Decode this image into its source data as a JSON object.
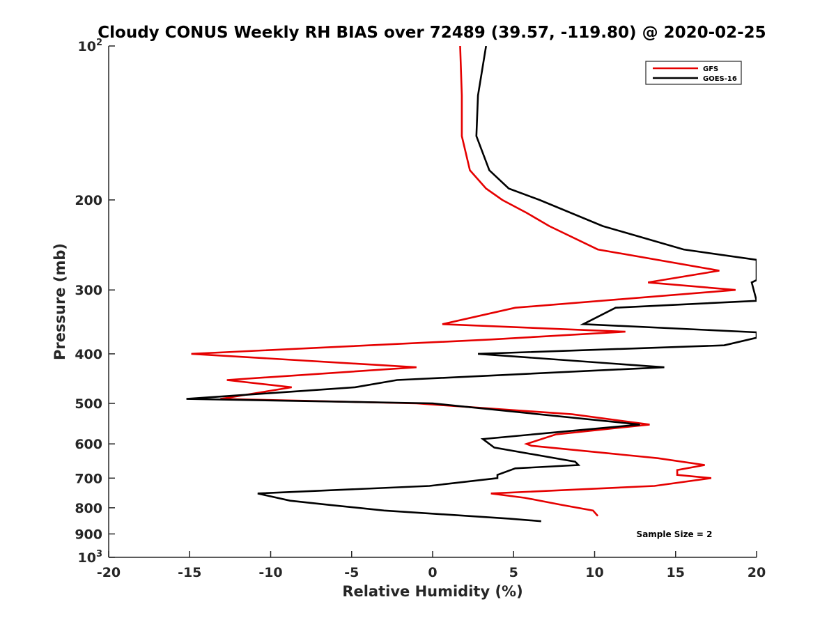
{
  "chart_data": {
    "type": "line",
    "title": "Cloudy CONUS Weekly RH BIAS over 72489 (39.57, -119.80) @ 2020-02-25",
    "xlabel": "Relative Humidity (%)",
    "ylabel": "Pressure (mb)",
    "xlim": [
      -20,
      20
    ],
    "ylim": [
      100,
      1000
    ],
    "y_scale": "log",
    "y_reversed": true,
    "grid": false,
    "legend_position": "top-right",
    "x_ticks": [
      "-20",
      "-15",
      "-10",
      "-5",
      "0",
      "5",
      "10",
      "15",
      "20"
    ],
    "y_ticks": [
      {
        "value": 100,
        "base": "10",
        "exp": "2"
      },
      {
        "value": 200,
        "label": "200"
      },
      {
        "value": 300,
        "label": "300"
      },
      {
        "value": 400,
        "label": "400"
      },
      {
        "value": 500,
        "label": "500"
      },
      {
        "value": 600,
        "label": "600"
      },
      {
        "value": 700,
        "label": "700"
      },
      {
        "value": 800,
        "label": "800"
      },
      {
        "value": 900,
        "label": "900"
      },
      {
        "value": 1000,
        "base": "10",
        "exp": "3"
      }
    ],
    "annotation": "Sample Size = 2",
    "series": [
      {
        "name": "GFS",
        "color": "#e50000",
        "points": [
          [
            1.7,
            100
          ],
          [
            1.8,
            125
          ],
          [
            1.8,
            150
          ],
          [
            2.3,
            175
          ],
          [
            3.3,
            190
          ],
          [
            4.3,
            200
          ],
          [
            5.8,
            212
          ],
          [
            7.2,
            225
          ],
          [
            10.2,
            250
          ],
          [
            17.7,
            275
          ],
          [
            13.3,
            290
          ],
          [
            18.7,
            300
          ],
          [
            5.1,
            325
          ],
          [
            0.6,
            350
          ],
          [
            11.9,
            362
          ],
          [
            3.6,
            375
          ],
          [
            -14.9,
            400
          ],
          [
            -1.0,
            425
          ],
          [
            -12.7,
            450
          ],
          [
            -8.7,
            465
          ],
          [
            -13.1,
            490
          ],
          [
            -1.0,
            500
          ],
          [
            8.6,
            525
          ],
          [
            13.4,
            550
          ],
          [
            7.6,
            575
          ],
          [
            5.8,
            600
          ],
          [
            6.1,
            605
          ],
          [
            13.9,
            640
          ],
          [
            16.8,
            660
          ],
          [
            15.1,
            675
          ],
          [
            15.1,
            690
          ],
          [
            17.2,
            700
          ],
          [
            13.7,
            725
          ],
          [
            3.6,
            750
          ],
          [
            5.7,
            765
          ],
          [
            8.0,
            790
          ],
          [
            9.9,
            810
          ],
          [
            10.2,
            830
          ]
        ]
      },
      {
        "name": "GOES-16",
        "color": "#000000",
        "points": [
          [
            3.3,
            100
          ],
          [
            2.8,
            125
          ],
          [
            2.7,
            150
          ],
          [
            3.5,
            175
          ],
          [
            4.7,
            190
          ],
          [
            6.6,
            200
          ],
          [
            10.5,
            225
          ],
          [
            15.5,
            250
          ],
          [
            20.0,
            262
          ],
          [
            20.0,
            287
          ],
          [
            19.7,
            290
          ],
          [
            20.0,
            315
          ],
          [
            11.3,
            325
          ],
          [
            9.3,
            350
          ],
          [
            20.0,
            363
          ],
          [
            20.0,
            372
          ],
          [
            18.0,
            385
          ],
          [
            2.8,
            400
          ],
          [
            14.3,
            425
          ],
          [
            -2.2,
            450
          ],
          [
            -4.8,
            465
          ],
          [
            -15.2,
            490
          ],
          [
            0.0,
            500
          ],
          [
            12.8,
            550
          ],
          [
            3.1,
            587
          ],
          [
            3.8,
            610
          ],
          [
            8.8,
            650
          ],
          [
            9.0,
            660
          ],
          [
            5.1,
            670
          ],
          [
            4.0,
            690
          ],
          [
            4.0,
            700
          ],
          [
            -0.2,
            725
          ],
          [
            -10.8,
            750
          ],
          [
            -8.8,
            775
          ],
          [
            -6.3,
            790
          ],
          [
            -3.0,
            810
          ],
          [
            4.7,
            840
          ],
          [
            6.7,
            850
          ]
        ]
      }
    ]
  }
}
